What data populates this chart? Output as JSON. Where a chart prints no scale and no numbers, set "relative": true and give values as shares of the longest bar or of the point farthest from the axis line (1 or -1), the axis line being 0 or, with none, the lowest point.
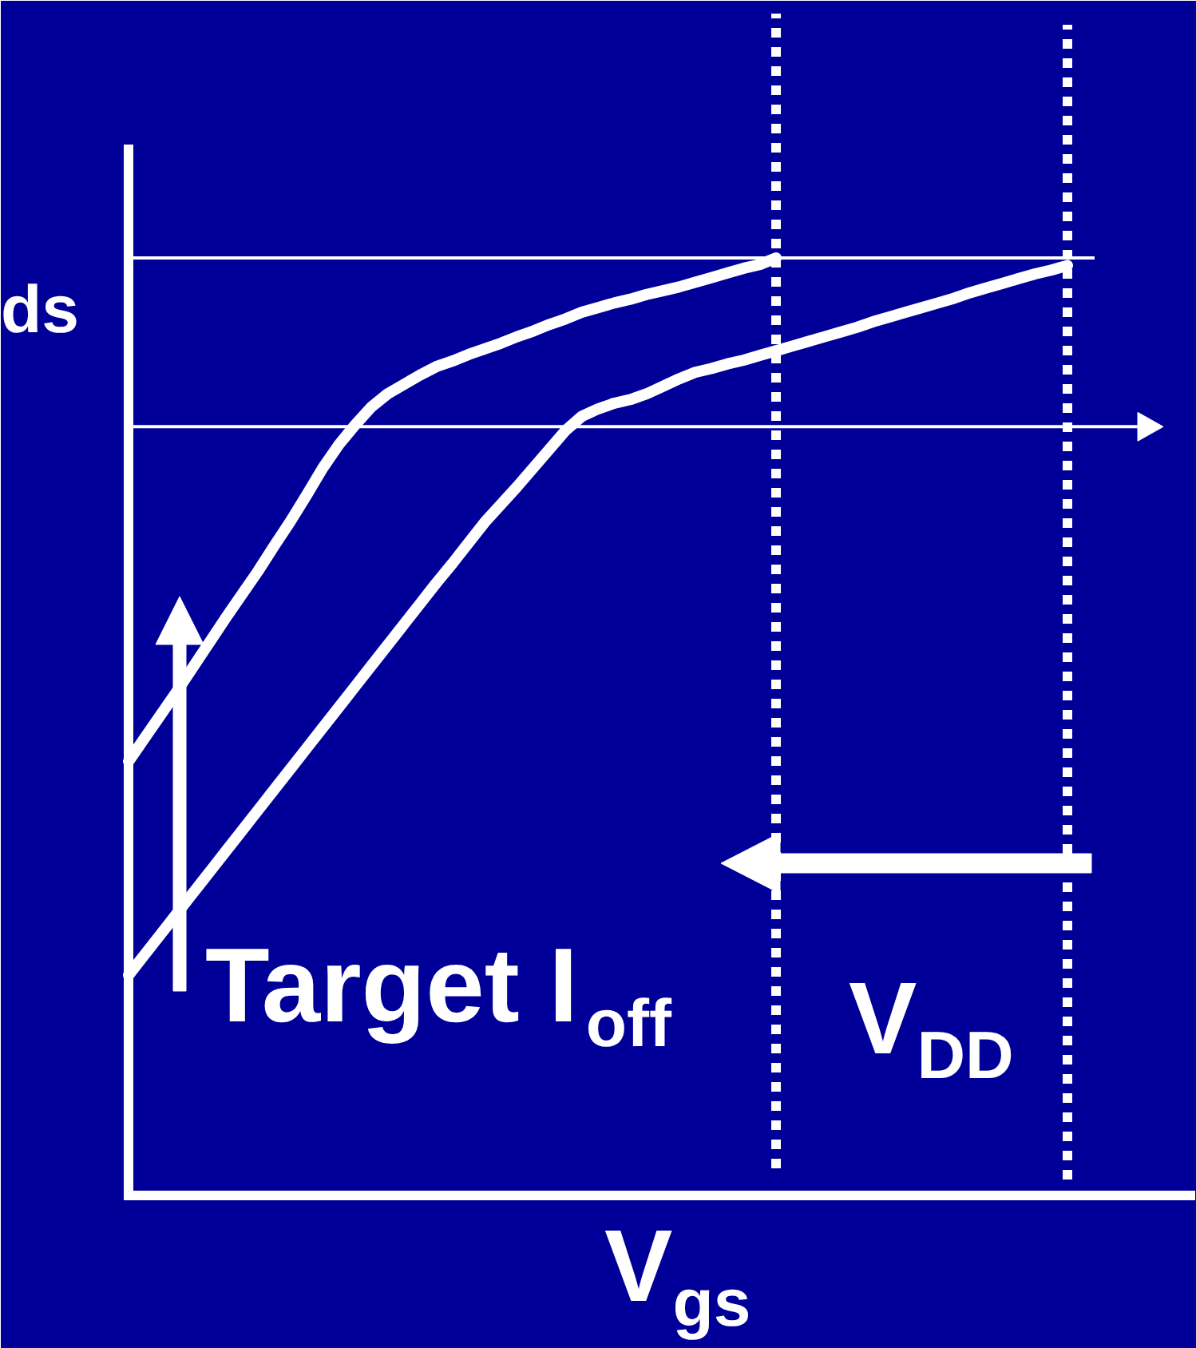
{
  "chart_data": {
    "type": "line",
    "relative": true,
    "xlabel": "V$_{gs}$",
    "ylabel": "ds",
    "annotations": [
      "Target I$_{off}$",
      "V$_{DD}$"
    ],
    "categories": [
      null,
      null,
      null,
      null,
      null,
      null,
      null,
      null,
      null,
      null,
      null,
      null,
      null,
      null,
      null,
      null,
      null,
      null,
      null,
      null,
      null,
      null,
      null,
      null,
      null,
      null,
      null,
      null,
      null,
      null,
      null,
      null,
      null,
      null,
      null,
      null,
      null,
      null,
      null,
      null,
      null,
      null,
      null,
      null,
      null,
      null,
      null,
      null,
      null,
      null,
      null,
      null,
      null,
      null,
      null,
      null,
      null,
      null,
      null
    ],
    "series": [
      {
        "color": "#ffffff",
        "values": [
          0.463,
          0.488,
          0.513,
          0.538,
          0.564,
          0.59,
          0.616,
          0.641,
          0.666,
          0.693,
          0.719,
          0.747,
          0.776,
          0.801,
          0.822,
          0.841,
          0.855,
          0.865,
          0.875,
          0.884,
          0.89,
          0.897,
          0.903,
          0.909,
          0.916,
          0.922,
          0.929,
          0.935,
          0.942,
          0.947,
          0.952,
          0.956,
          0.961,
          0.965,
          0.969,
          0.974,
          0.979,
          0.984,
          0.989,
          0.993,
          1.0,
          null,
          null,
          null,
          null,
          null,
          null,
          null,
          null,
          null,
          null,
          null,
          null,
          null,
          null,
          null,
          null,
          null,
          null
        ]
      },
      {
        "color": "#ffffff",
        "values": [
          0.235,
          0.257,
          0.279,
          0.301,
          0.323,
          0.345,
          0.367,
          0.389,
          0.411,
          0.433,
          0.455,
          0.477,
          0.499,
          0.521,
          0.543,
          0.565,
          0.587,
          0.609,
          0.631,
          0.653,
          0.674,
          0.696,
          0.718,
          0.737,
          0.756,
          0.776,
          0.796,
          0.816,
          0.831,
          0.839,
          0.845,
          0.849,
          0.855,
          0.863,
          0.871,
          0.878,
          0.882,
          0.887,
          0.891,
          0.896,
          0.901,
          0.906,
          0.911,
          0.916,
          0.921,
          0.926,
          0.932,
          0.937,
          0.942,
          0.947,
          0.952,
          0.957,
          0.963,
          0.968,
          0.973,
          0.978,
          0.983,
          0.987,
          0.992
        ]
      }
    ],
    "ref_lines": [
      {
        "axis": "y",
        "value": 1.0,
        "color": "#ffffff"
      },
      {
        "axis": "y",
        "value": 0.82,
        "color": "#ffffff"
      }
    ],
    "line_style": "solid"
  }
}
